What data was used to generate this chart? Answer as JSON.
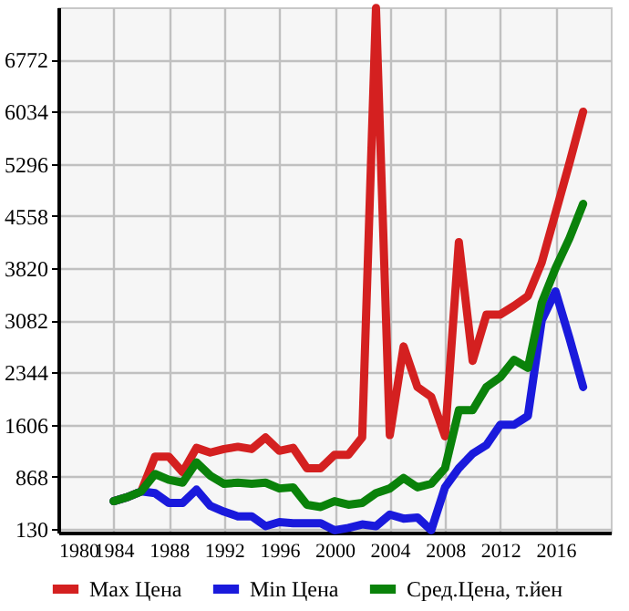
{
  "chart_data": {
    "type": "line",
    "x": [
      1984,
      1985,
      1986,
      1987,
      1988,
      1989,
      1990,
      1991,
      1992,
      1993,
      1994,
      1995,
      1996,
      1997,
      1998,
      1999,
      2000,
      2001,
      2002,
      2003,
      2004,
      2005,
      2006,
      2007,
      2008,
      2009,
      2010,
      2011,
      2012,
      2013,
      2014,
      2015,
      2016,
      2017,
      2018
    ],
    "series": [
      {
        "name": "Max Цена",
        "color": "#d42020",
        "values": [
          524,
          581,
          663,
          1155,
          1155,
          934,
          1278,
          1212,
          1262,
          1294,
          1262,
          1426,
          1237,
          1278,
          991,
          991,
          1180,
          1180,
          1426,
          7500,
          1459,
          2713,
          2139,
          2000,
          1442,
          4189,
          2508,
          3164,
          3164,
          3287,
          3426,
          3900,
          4600,
          5300,
          6034
        ]
      },
      {
        "name": "Min Цена",
        "color": "#1a1adc",
        "values": [
          524,
          581,
          663,
          638,
          499,
          499,
          688,
          458,
          376,
          310,
          310,
          171,
          228,
          212,
          212,
          212,
          113,
          146,
          195,
          171,
          335,
          278,
          294,
          113,
          720,
          991,
          1196,
          1319,
          1606,
          1606,
          1729,
          3082,
          3492,
          2836,
          2139
        ]
      },
      {
        "name": "Сред.Цена, т.йен",
        "color": "#0a820a",
        "values": [
          524,
          581,
          663,
          909,
          827,
          786,
          1073,
          885,
          770,
          786,
          770,
          786,
          704,
          720,
          474,
          442,
          524,
          474,
          499,
          638,
          704,
          852,
          720,
          770,
          991,
          1811,
          1811,
          2139,
          2278,
          2524,
          2410,
          3328,
          3820,
          4238,
          4730
        ]
      }
    ],
    "xlim": [
      1980,
      2020
    ],
    "xticks": [
      1980,
      1984,
      1988,
      1992,
      1996,
      2000,
      2004,
      2008,
      2012,
      2016
    ],
    "ylim": [
      80,
      7510
    ],
    "yticks": [
      130,
      868,
      1606,
      2344,
      3082,
      3820,
      4558,
      5296,
      6034,
      6772
    ],
    "grid": true,
    "legend": "bottom",
    "line_style": "solid",
    "marker": "none"
  }
}
